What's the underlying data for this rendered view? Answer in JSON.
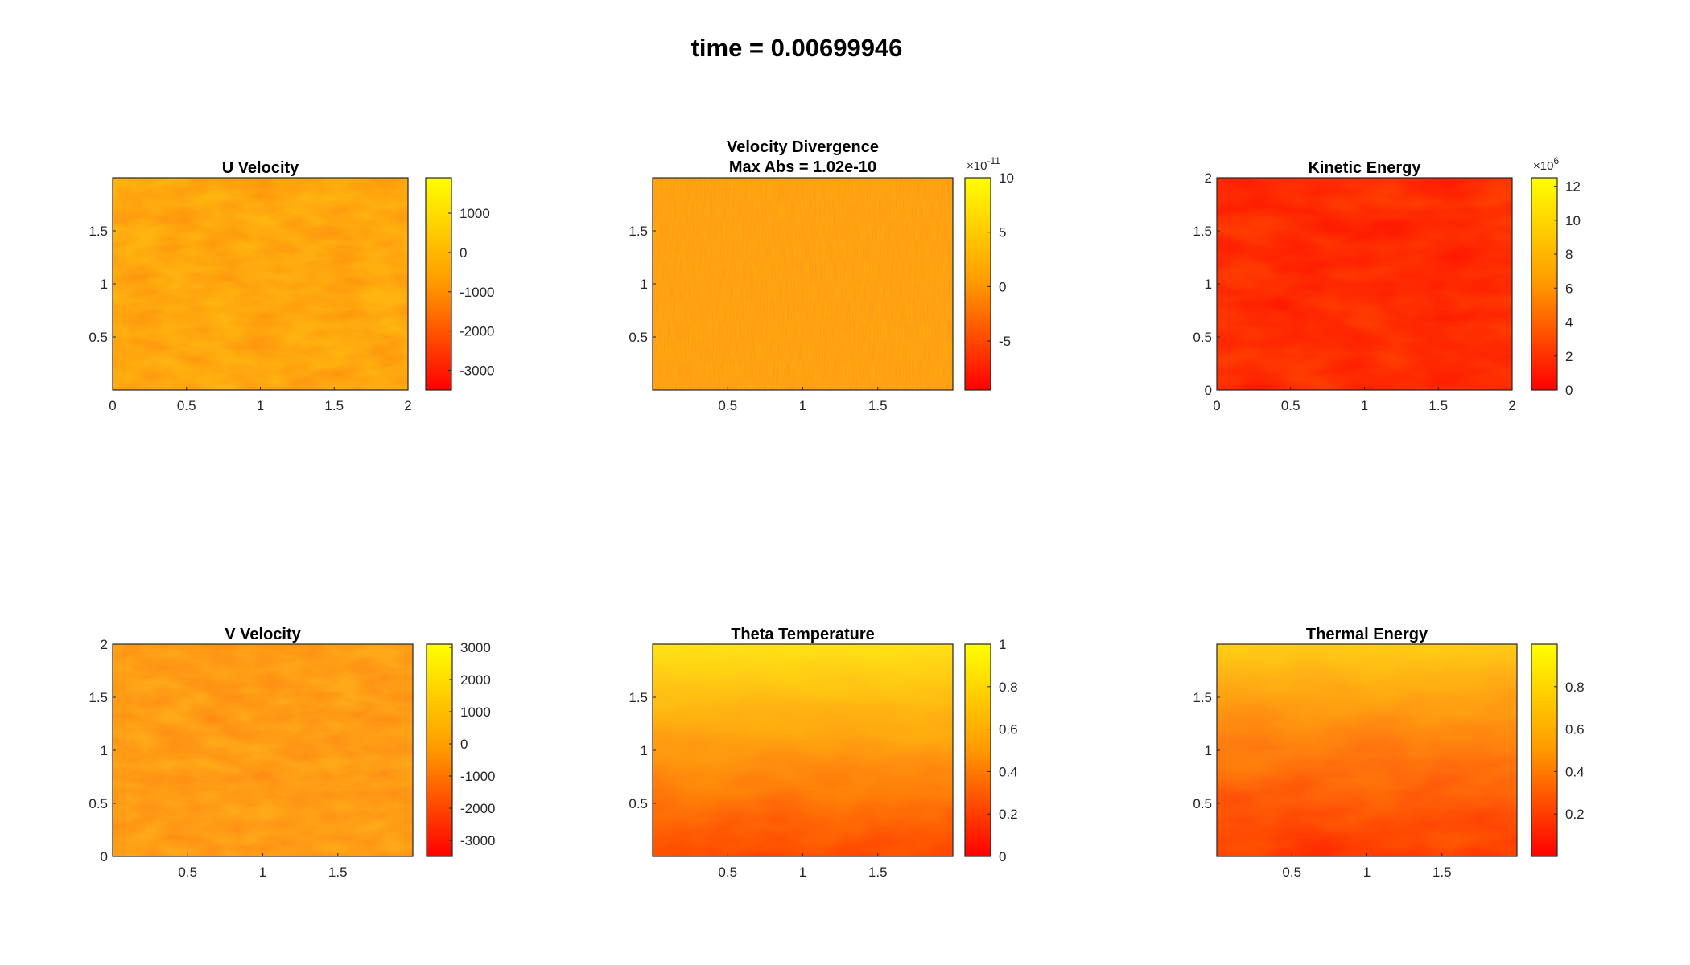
{
  "figure_title": "time = 0.00699946",
  "colors": {
    "colormap_low": "#ff0000",
    "colormap_mid": "#ff9900",
    "colormap_high": "#ffff00",
    "axis": "#262626"
  },
  "chart_data": [
    {
      "type": "heatmap",
      "title": "U Velocity",
      "field_mean_color": "#ffb410",
      "xlim": [
        0,
        2
      ],
      "ylim": [
        0,
        2
      ],
      "xticks": [
        0,
        0.5,
        1,
        1.5,
        2
      ],
      "xtick_labels": [
        "0",
        "0.5",
        "1",
        "1.5",
        "2"
      ],
      "yticks": [
        0.5,
        1,
        1.5
      ],
      "ytick_labels": [
        "0.5",
        "1",
        "1.5"
      ],
      "colorbar": {
        "colormap": "autumn",
        "range": [
          -3500,
          1900
        ],
        "ticks": [
          -3000,
          -2000,
          -1000,
          0,
          1000
        ],
        "tick_labels": [
          "-3000",
          "-2000",
          "-1000",
          "0",
          "1000"
        ],
        "multiplier": ""
      }
    },
    {
      "type": "heatmap",
      "title": "Velocity Divergence",
      "subtitle": "Max Abs = 1.02e-10",
      "field_mean_color": "#ff9c14",
      "xlim": [
        0,
        2
      ],
      "ylim": [
        0,
        2
      ],
      "xticks": [
        0.5,
        1,
        1.5
      ],
      "xtick_labels": [
        "0.5",
        "1",
        "1.5"
      ],
      "yticks": [
        0.5,
        1,
        1.5
      ],
      "ytick_labels": [
        "0.5",
        "1",
        "1.5"
      ],
      "colorbar": {
        "colormap": "autumn",
        "range": [
          -9.5,
          10
        ],
        "ticks": [
          -5,
          0,
          5,
          10
        ],
        "tick_labels": [
          "-5",
          "0",
          "5",
          "10"
        ],
        "multiplier": "×10",
        "multiplier_exp": "-11"
      }
    },
    {
      "type": "heatmap",
      "title": "Kinetic Energy",
      "field_mean_color": "#ff1a00",
      "xlim": [
        0,
        2
      ],
      "ylim": [
        0,
        2
      ],
      "xticks": [
        0,
        0.5,
        1,
        1.5,
        2
      ],
      "xtick_labels": [
        "0",
        "0.5",
        "1",
        "1.5",
        "2"
      ],
      "yticks": [
        0,
        0.5,
        1,
        1.5,
        2
      ],
      "ytick_labels": [
        "0",
        "0.5",
        "1",
        "1.5",
        "2"
      ],
      "colorbar": {
        "colormap": "autumn",
        "range": [
          0,
          12.5
        ],
        "ticks": [
          0,
          2,
          4,
          6,
          8,
          10,
          12
        ],
        "tick_labels": [
          "0",
          "2",
          "4",
          "6",
          "8",
          "10",
          "12"
        ],
        "multiplier": "×10",
        "multiplier_exp": "6"
      }
    },
    {
      "type": "heatmap",
      "title": "V Velocity",
      "field_mean_color": "#ffa818",
      "xlim": [
        0,
        2
      ],
      "ylim": [
        0,
        2
      ],
      "xticks": [
        0.5,
        1,
        1.5
      ],
      "xtick_labels": [
        "0.5",
        "1",
        "1.5"
      ],
      "yticks": [
        0,
        0.5,
        1,
        1.5,
        2
      ],
      "ytick_labels": [
        "0",
        "0.5",
        "1",
        "1.5",
        "2"
      ],
      "colorbar": {
        "colormap": "autumn",
        "range": [
          -3500,
          3100
        ],
        "ticks": [
          -3000,
          -2000,
          -1000,
          0,
          1000,
          2000,
          3000
        ],
        "tick_labels": [
          "-3000",
          "-2000",
          "-1000",
          "0",
          "1000",
          "2000",
          "3000"
        ],
        "multiplier": ""
      }
    },
    {
      "type": "heatmap",
      "title": "Theta Temperature",
      "field_mean_color": "#ff9a12",
      "xlim": [
        0,
        2
      ],
      "ylim": [
        0,
        2
      ],
      "xticks": [
        0.5,
        1,
        1.5
      ],
      "xtick_labels": [
        "0.5",
        "1",
        "1.5"
      ],
      "yticks": [
        0.5,
        1,
        1.5
      ],
      "ytick_labels": [
        "0.5",
        "1",
        "1.5"
      ],
      "colorbar": {
        "colormap": "autumn",
        "range": [
          0,
          1
        ],
        "ticks": [
          0,
          0.2,
          0.4,
          0.6,
          0.8,
          1
        ],
        "tick_labels": [
          "0",
          "0.2",
          "0.4",
          "0.6",
          "0.8",
          "1"
        ],
        "multiplier": ""
      }
    },
    {
      "type": "heatmap",
      "title": "Thermal Energy",
      "field_mean_color": "#ff8e10",
      "xlim": [
        0,
        2
      ],
      "ylim": [
        0,
        2
      ],
      "xticks": [
        0.5,
        1,
        1.5
      ],
      "xtick_labels": [
        "0.5",
        "1",
        "1.5"
      ],
      "yticks": [
        0.5,
        1,
        1.5
      ],
      "ytick_labels": [
        "0.5",
        "1",
        "1.5"
      ],
      "colorbar": {
        "colormap": "autumn",
        "range": [
          0,
          1
        ],
        "ticks": [
          0.2,
          0.4,
          0.6,
          0.8
        ],
        "tick_labels": [
          "0.2",
          "0.4",
          "0.6",
          "0.8"
        ],
        "multiplier": ""
      }
    }
  ]
}
